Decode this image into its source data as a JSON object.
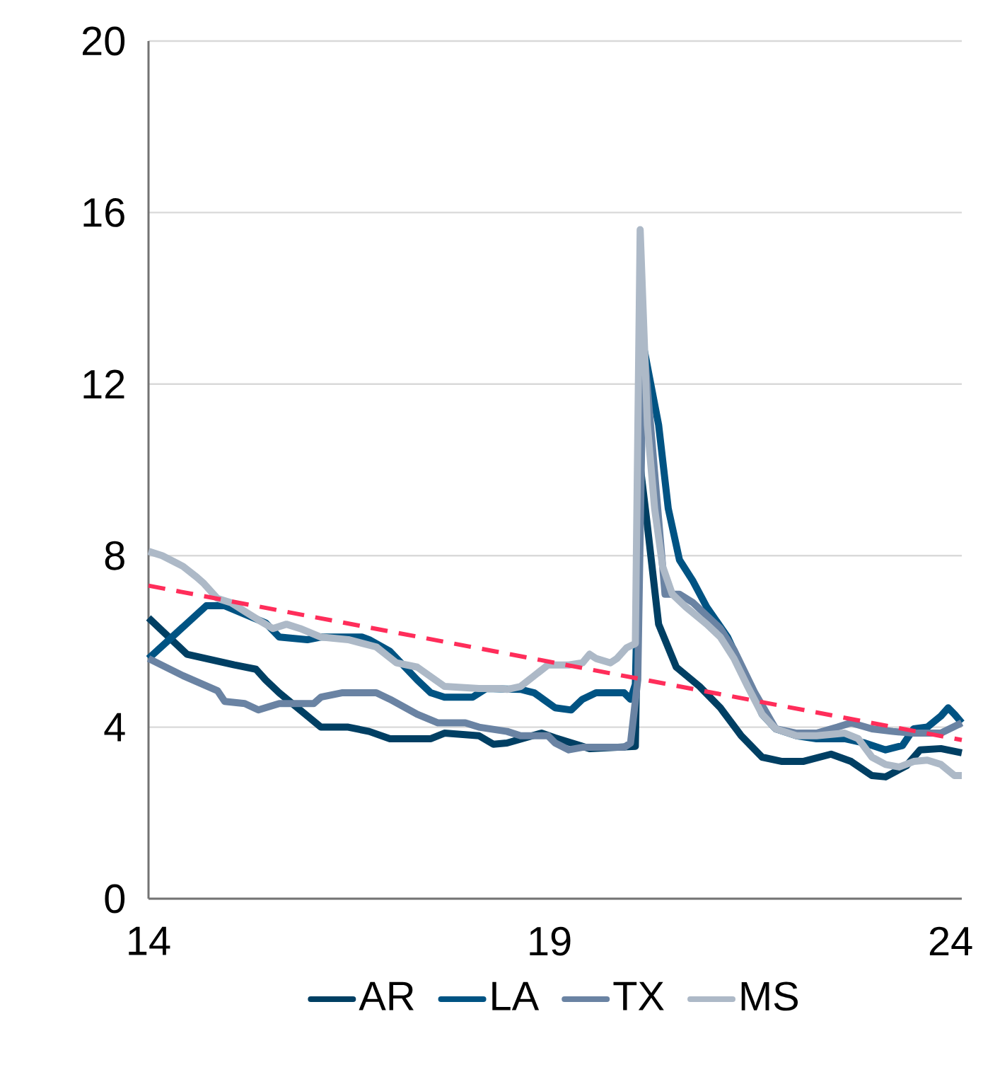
{
  "chart_data": {
    "type": "line",
    "xlim": [
      14,
      24.14
    ],
    "ylim": [
      0,
      20
    ],
    "xticks": [
      14,
      19,
      24
    ],
    "yticks": [
      0,
      4,
      8,
      12,
      16,
      20
    ],
    "grid": "y",
    "legend": "bottom",
    "series": [
      {
        "name": "AR",
        "color": "#003f63",
        "x": [
          14.0,
          14.48,
          15.07,
          15.34,
          15.46,
          15.63,
          16.15,
          16.49,
          16.75,
          17.01,
          17.52,
          17.69,
          18.12,
          18.3,
          18.47,
          18.9,
          19.07,
          19.5,
          20.07,
          20.13,
          20.22,
          20.36,
          20.58,
          20.87,
          21.13,
          21.39,
          21.65,
          21.9,
          22.16,
          22.51,
          22.76,
          23.02,
          23.19,
          23.45,
          23.62,
          23.88,
          24.14
        ],
        "values": [
          6.55,
          5.7,
          5.45,
          5.35,
          5.1,
          4.8,
          4.0,
          4.0,
          3.9,
          3.73,
          3.73,
          3.86,
          3.8,
          3.6,
          3.63,
          3.86,
          3.75,
          3.5,
          3.55,
          10.1,
          8.7,
          6.4,
          5.4,
          4.95,
          4.45,
          3.8,
          3.3,
          3.2,
          3.2,
          3.37,
          3.2,
          2.87,
          2.84,
          3.1,
          3.47,
          3.5,
          3.4
        ]
      },
      {
        "name": "LA",
        "color": "#005383",
        "x": [
          14.0,
          14.72,
          14.95,
          15.46,
          15.63,
          15.98,
          16.15,
          16.66,
          16.75,
          17.01,
          17.35,
          17.52,
          17.69,
          18.04,
          18.21,
          18.64,
          18.81,
          19.07,
          19.27,
          19.41,
          19.58,
          19.93,
          20.01,
          20.07,
          20.17,
          20.36,
          20.48,
          20.62,
          20.79,
          20.96,
          21.22,
          21.47,
          21.65,
          21.82,
          22.08,
          22.33,
          22.68,
          22.93,
          23.19,
          23.4,
          23.54,
          23.71,
          23.88,
          23.97,
          24.05,
          24.14
        ],
        "values": [
          5.6,
          6.83,
          6.83,
          6.43,
          6.1,
          6.04,
          6.1,
          6.1,
          6.04,
          5.77,
          5.1,
          4.8,
          4.7,
          4.7,
          4.9,
          4.88,
          4.8,
          4.45,
          4.4,
          4.65,
          4.8,
          4.8,
          4.65,
          5.0,
          12.9,
          11.05,
          9.1,
          7.9,
          7.4,
          6.8,
          6.1,
          5.1,
          4.3,
          3.96,
          3.8,
          3.73,
          3.73,
          3.63,
          3.47,
          3.57,
          3.96,
          4.0,
          4.26,
          4.45,
          4.3,
          4.1
        ]
      },
      {
        "name": "TX",
        "color": "#6a83a3",
        "x": [
          14.0,
          14.43,
          14.86,
          14.95,
          15.2,
          15.37,
          15.63,
          16.06,
          16.15,
          16.41,
          16.84,
          17.01,
          17.35,
          17.61,
          17.95,
          18.12,
          18.47,
          18.64,
          18.98,
          19.07,
          19.24,
          19.41,
          19.93,
          20.01,
          20.1,
          20.17,
          20.44,
          20.62,
          20.79,
          20.96,
          21.13,
          21.3,
          21.56,
          21.82,
          22.08,
          22.33,
          22.59,
          22.76,
          23.02,
          23.28,
          23.54,
          23.88,
          24.14
        ],
        "values": [
          5.6,
          5.2,
          4.85,
          4.6,
          4.55,
          4.4,
          4.55,
          4.55,
          4.7,
          4.8,
          4.8,
          4.65,
          4.3,
          4.1,
          4.1,
          4.0,
          3.9,
          3.8,
          3.8,
          3.63,
          3.47,
          3.53,
          3.53,
          3.63,
          5.1,
          13.0,
          7.1,
          7.1,
          6.9,
          6.6,
          6.3,
          5.8,
          4.8,
          3.96,
          3.86,
          3.86,
          4.0,
          4.1,
          3.96,
          3.9,
          3.86,
          3.86,
          4.1
        ]
      },
      {
        "name": "MS",
        "color": "#adb9c7",
        "x": [
          14.0,
          14.17,
          14.43,
          14.6,
          14.69,
          14.86,
          15.03,
          15.2,
          15.37,
          15.55,
          15.72,
          15.89,
          16.15,
          16.49,
          16.84,
          17.09,
          17.35,
          17.69,
          18.12,
          18.38,
          18.47,
          18.64,
          18.81,
          18.98,
          19.24,
          19.41,
          19.5,
          19.58,
          19.76,
          19.84,
          19.96,
          20.07,
          20.13,
          20.22,
          20.31,
          20.41,
          20.53,
          20.7,
          20.96,
          21.13,
          21.3,
          21.47,
          21.65,
          21.82,
          22.08,
          22.33,
          22.68,
          22.85,
          23.02,
          23.19,
          23.36,
          23.54,
          23.71,
          23.88,
          24.05,
          24.14
        ],
        "values": [
          8.1,
          8.0,
          7.75,
          7.5,
          7.35,
          7.0,
          6.9,
          6.7,
          6.5,
          6.3,
          6.4,
          6.3,
          6.1,
          6.04,
          5.87,
          5.5,
          5.4,
          4.95,
          4.9,
          4.9,
          4.88,
          4.95,
          5.2,
          5.45,
          5.45,
          5.5,
          5.7,
          5.6,
          5.5,
          5.6,
          5.85,
          5.95,
          15.6,
          11.05,
          9.1,
          7.75,
          7.1,
          6.8,
          6.4,
          6.1,
          5.6,
          4.95,
          4.3,
          3.96,
          3.8,
          3.8,
          3.86,
          3.73,
          3.3,
          3.13,
          3.07,
          3.2,
          3.23,
          3.13,
          2.87,
          2.87
        ]
      },
      {
        "type": "line",
        "line_style": "dashed",
        "color": "#ff2d5a",
        "x": [
          14,
          24.14
        ],
        "values": [
          7.3,
          3.7
        ]
      }
    ]
  }
}
